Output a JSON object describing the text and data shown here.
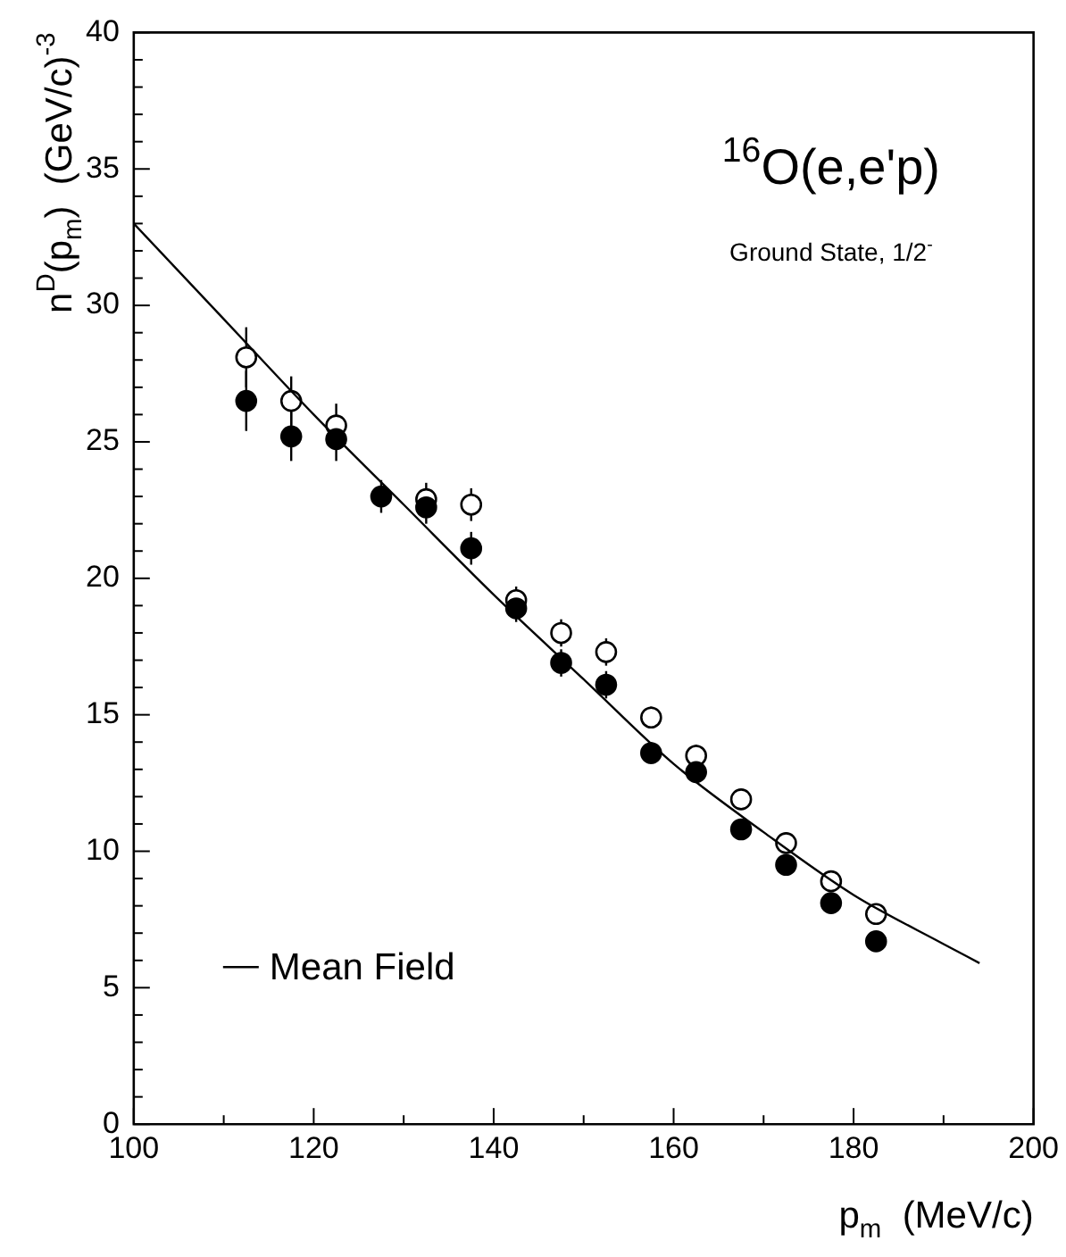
{
  "chart_data": {
    "type": "scatter",
    "annotations": [
      "$^{16}$O(e,e'p)",
      "Ground State, 1/2$^{-}$"
    ],
    "xlabel": "p$_{m}$  (MeV/c)",
    "ylabel": "n$^{D}$(p$_{m}$)  (GeV/c)$^{-3}$",
    "x": [
      112.5,
      117.5,
      122.5,
      127.5,
      132.5,
      137.5,
      142.5,
      147.5,
      152.5,
      157.5,
      162.5,
      167.5,
      172.5,
      177.5,
      182.5
    ],
    "series": [
      {
        "color": "#000000",
        "values": [
          28.1,
          26.5,
          25.6,
          null,
          22.9,
          22.7,
          19.2,
          18.0,
          17.3,
          14.9,
          13.5,
          11.9,
          10.3,
          8.9,
          7.7
        ],
        "errors": [
          1.1,
          0.9,
          0.8,
          null,
          0.6,
          0.6,
          0.5,
          0.5,
          0.5,
          0.4,
          0.4,
          0.3,
          0.3,
          0.3,
          0.3
        ]
      },
      {
        "color": "#000000",
        "values": [
          26.5,
          25.2,
          25.1,
          23.0,
          22.6,
          21.1,
          18.9,
          16.9,
          16.1,
          13.6,
          12.9,
          10.8,
          9.5,
          8.1,
          6.7
        ],
        "errors": [
          1.1,
          0.9,
          0.8,
          0.6,
          0.6,
          0.6,
          0.5,
          0.5,
          0.5,
          0.4,
          0.4,
          0.3,
          0.3,
          0.3,
          0.3
        ]
      },
      {
        "type": "line",
        "name": "Mean Field",
        "color": "#000000",
        "marker": "none",
        "x": [
          100,
          110,
          120,
          130,
          140,
          150,
          160,
          170,
          180,
          190,
          194
        ],
        "values": [
          33.0,
          29.5,
          26.0,
          22.7,
          19.4,
          16.3,
          13.2,
          10.7,
          8.4,
          6.6,
          5.9
        ]
      }
    ],
    "marker": "circle",
    "xlim": [
      100,
      200
    ],
    "xticks": [
      100,
      {
        "value": 110,
        "label": null
      },
      120,
      {
        "value": 130,
        "label": null
      },
      140,
      {
        "value": 150,
        "label": null
      },
      160,
      {
        "value": 170,
        "label": null
      },
      180,
      {
        "value": 190,
        "label": null
      },
      200
    ],
    "ylim": [
      0,
      40
    ],
    "yticks": [
      0,
      {
        "value": 1,
        "label": null
      },
      {
        "value": 2,
        "label": null
      },
      {
        "value": 3,
        "label": null
      },
      {
        "value": 4,
        "label": null
      },
      5,
      {
        "value": 6,
        "label": null
      },
      {
        "value": 7,
        "label": null
      },
      {
        "value": 8,
        "label": null
      },
      {
        "value": 9,
        "label": null
      },
      10,
      {
        "value": 11,
        "label": null
      },
      {
        "value": 12,
        "label": null
      },
      {
        "value": 13,
        "label": null
      },
      {
        "value": 14,
        "label": null
      },
      15,
      {
        "value": 16,
        "label": null
      },
      {
        "value": 17,
        "label": null
      },
      {
        "value": 18,
        "label": null
      },
      {
        "value": 19,
        "label": null
      },
      20,
      {
        "value": 21,
        "label": null
      },
      {
        "value": 22,
        "label": null
      },
      {
        "value": 23,
        "label": null
      },
      {
        "value": 24,
        "label": null
      },
      25,
      {
        "value": 26,
        "label": null
      },
      {
        "value": 27,
        "label": null
      },
      {
        "value": 28,
        "label": null
      },
      {
        "value": 29,
        "label": null
      },
      30,
      {
        "value": 31,
        "label": null
      },
      {
        "value": 32,
        "label": null
      },
      {
        "value": 33,
        "label": null
      },
      {
        "value": 34,
        "label": null
      },
      35,
      {
        "value": 36,
        "label": null
      },
      {
        "value": 37,
        "label": null
      },
      {
        "value": 38,
        "label": null
      },
      {
        "value": 39,
        "label": null
      },
      40
    ],
    "grid": false,
    "legend": "bottom left"
  }
}
